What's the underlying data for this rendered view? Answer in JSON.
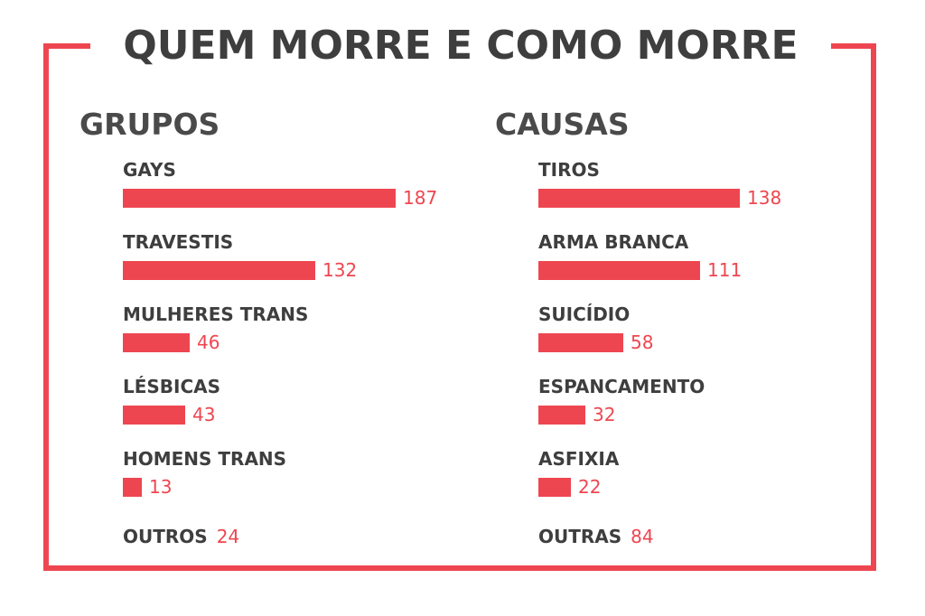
{
  "title": "QUEM MORRE E COMO MORRE",
  "colors": {
    "accent": "#ee4650",
    "text": "#3e3e3e"
  },
  "chart_data": [
    {
      "type": "bar",
      "orientation": "horizontal",
      "title": "GRUPOS",
      "categories": [
        "GAYS",
        "TRAVESTIS",
        "MULHERES TRANS",
        "LÉSBICAS",
        "HOMENS TRANS"
      ],
      "values": [
        187,
        132,
        46,
        43,
        13
      ],
      "extra": {
        "label": "OUTROS",
        "value": 24
      }
    },
    {
      "type": "bar",
      "orientation": "horizontal",
      "title": "CAUSAS",
      "categories": [
        "TIROS",
        "ARMA BRANCA",
        "SUICÍDIO",
        "ESPANCAMENTO",
        "ASFIXIA"
      ],
      "values": [
        138,
        111,
        58,
        32,
        22
      ],
      "extra": {
        "label": "OUTRAS",
        "value": 84
      }
    }
  ]
}
